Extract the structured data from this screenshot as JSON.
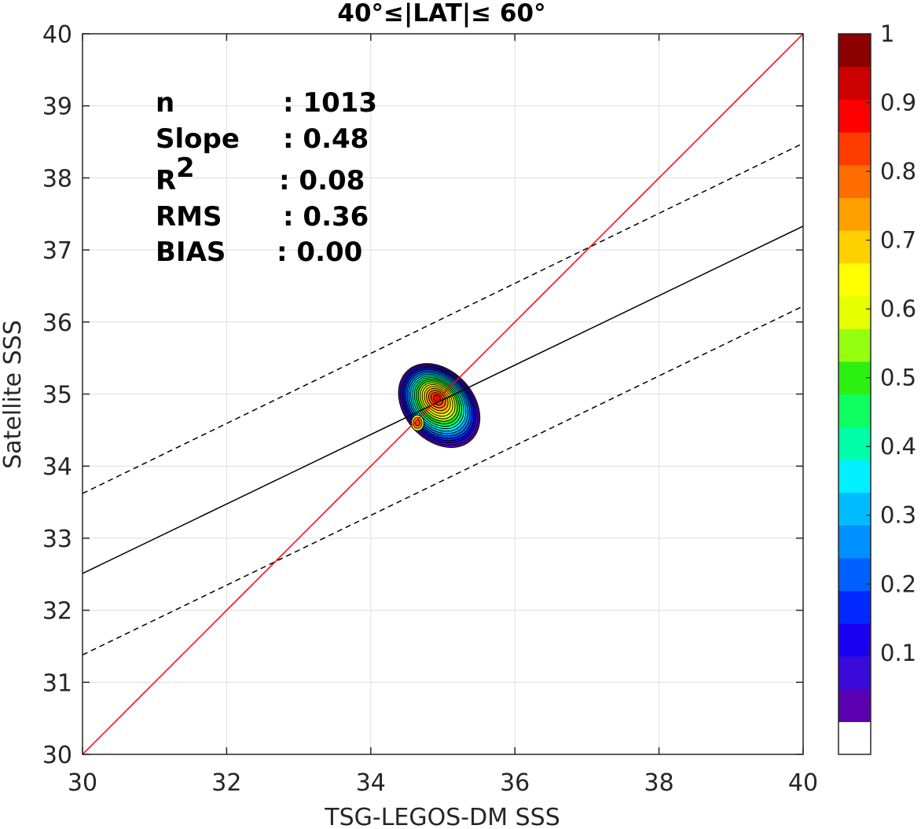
{
  "chart_data": {
    "type": "contour",
    "title": "40°≤|LAT|≤ 60°",
    "xlabel": "TSG-LEGOS-DM SSS",
    "ylabel": "Satellite SSS",
    "xlim": [
      30,
      40
    ],
    "ylim": [
      30,
      40
    ],
    "xticks": [
      "30",
      "32",
      "34",
      "36",
      "38",
      "40"
    ],
    "yticks": [
      "30",
      "31",
      "32",
      "33",
      "34",
      "35",
      "36",
      "37",
      "38",
      "39",
      "40"
    ],
    "grid": true,
    "stats": [
      {
        "label": "n",
        "value": ": 1013"
      },
      {
        "label": "Slope",
        "value": ": 0.48"
      },
      {
        "label": "R",
        "label_sup": "2",
        "value": ": 0.08"
      },
      {
        "label": "RMS",
        "value": ": 0.36"
      },
      {
        "label": "BIAS",
        "value": ": 0.00"
      }
    ],
    "lines": {
      "identity": {
        "x": [
          30,
          40
        ],
        "y": [
          30,
          40
        ],
        "color": "#ff0000"
      },
      "regression": {
        "x": [
          30,
          40
        ],
        "y": [
          32.51,
          37.33
        ],
        "color": "#000000"
      },
      "upper_bound": {
        "x": [
          30,
          40
        ],
        "y": [
          33.62,
          38.48
        ],
        "color": "#000000"
      },
      "lower_bound": {
        "x": [
          30,
          40
        ],
        "y": [
          31.38,
          36.22
        ],
        "color": "#000000"
      }
    },
    "density": {
      "center_x": 34.95,
      "center_y": 34.95,
      "levels": [
        0.05,
        0.1,
        0.15,
        0.2,
        0.25,
        0.3,
        0.35,
        0.4,
        0.45,
        0.5,
        0.55,
        0.6,
        0.65,
        0.7,
        0.75,
        0.8,
        0.85,
        0.9,
        0.95
      ]
    },
    "colorbar": {
      "range": [
        0,
        1
      ],
      "ticks": [
        "0.1",
        "0.2",
        "0.3",
        "0.4",
        "0.5",
        "0.6",
        "0.7",
        "0.8",
        "0.9",
        "1"
      ],
      "colors": [
        "#ffffff",
        "#5a00b0",
        "#3a0ad8",
        "#1a00f0",
        "#0028ff",
        "#0060ff",
        "#0090ff",
        "#00bcff",
        "#00f0ff",
        "#00ffa8",
        "#10ff60",
        "#2cf010",
        "#96ff10",
        "#e6ff00",
        "#ffff00",
        "#ffd000",
        "#ffa000",
        "#ff6c00",
        "#ff3c00",
        "#ff0000",
        "#cc0000",
        "#8c0000"
      ]
    }
  }
}
